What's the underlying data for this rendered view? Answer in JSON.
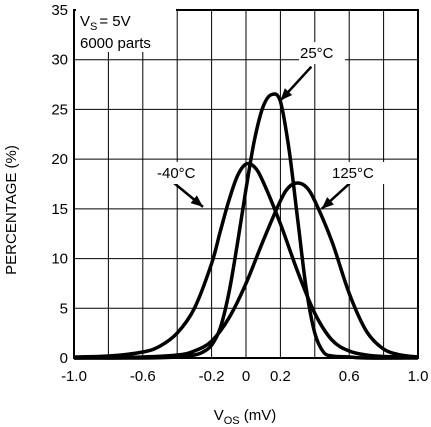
{
  "chart_data": {
    "type": "line",
    "xlabel": {
      "main": "V",
      "sub": "OS",
      "unit": " (mV)"
    },
    "ylabel": "PERCENTAGE (%)",
    "xlim": [
      -1.0,
      1.0
    ],
    "ylim": [
      0,
      35
    ],
    "x_ticks": [
      {
        "value": -1.0,
        "label": "-1.0"
      },
      {
        "value": -0.6,
        "label": "-0.6"
      },
      {
        "value": -0.2,
        "label": "-0.2"
      },
      {
        "value": 0.0,
        "label": "0"
      },
      {
        "value": 0.2,
        "label": "0.2"
      },
      {
        "value": 0.6,
        "label": "0.6"
      },
      {
        "value": 1.0,
        "label": "1.0"
      }
    ],
    "y_ticks": [
      0,
      5,
      10,
      15,
      20,
      25,
      30,
      35
    ],
    "x_grid": [
      -1.0,
      -0.8,
      -0.6,
      -0.4,
      -0.2,
      0.0,
      0.2,
      0.4,
      0.6,
      0.8,
      1.0
    ],
    "grid": true,
    "conditions": {
      "vs_main": "V",
      "vs_sub": "S",
      "vs_value": "= 5V",
      "parts": "6000 parts"
    },
    "series": [
      {
        "name": "25°C",
        "x": [
          -1.0,
          -0.6,
          -0.4,
          -0.3,
          -0.25,
          -0.2,
          -0.15,
          -0.1,
          -0.05,
          0.0,
          0.05,
          0.1,
          0.15,
          0.2,
          0.25,
          0.3,
          0.35,
          0.4,
          0.45,
          0.5,
          0.6,
          0.7,
          1.0
        ],
        "y": [
          0,
          0,
          0.1,
          0.3,
          0.6,
          1.3,
          3,
          6.5,
          11.5,
          17,
          22,
          25.3,
          26.5,
          25.8,
          21,
          14,
          7,
          2.5,
          0.6,
          0.2,
          0.1,
          0,
          0
        ]
      },
      {
        "name": "-40°C",
        "x": [
          -1.0,
          -0.8,
          -0.6,
          -0.5,
          -0.4,
          -0.3,
          -0.2,
          -0.15,
          -0.1,
          -0.05,
          0.0,
          0.05,
          0.1,
          0.2,
          0.3,
          0.4,
          0.5,
          0.6,
          0.7,
          0.8,
          1.0
        ],
        "y": [
          0.1,
          0.2,
          0.6,
          1.2,
          2.5,
          5,
          9.5,
          12.7,
          15.8,
          18.3,
          19.5,
          19.2,
          17.7,
          13.5,
          8.7,
          4.5,
          1.8,
          0.7,
          0.3,
          0.15,
          0.1
        ]
      },
      {
        "name": "125°C",
        "x": [
          -1.0,
          -0.6,
          -0.4,
          -0.3,
          -0.2,
          -0.1,
          0.0,
          0.1,
          0.2,
          0.25,
          0.3,
          0.35,
          0.4,
          0.5,
          0.6,
          0.7,
          0.8,
          0.9,
          1.0
        ],
        "y": [
          0,
          0.1,
          0.3,
          0.7,
          1.7,
          4,
          7.5,
          11.8,
          15.8,
          17.2,
          17.6,
          17.2,
          15.8,
          11.7,
          6.5,
          2.7,
          0.9,
          0.3,
          0.1
        ]
      }
    ],
    "annotations": [
      {
        "text": "25°C",
        "series": "25°C"
      },
      {
        "text": "-40°C",
        "series": "-40°C"
      },
      {
        "text": "125°C",
        "series": "125°C"
      }
    ]
  }
}
